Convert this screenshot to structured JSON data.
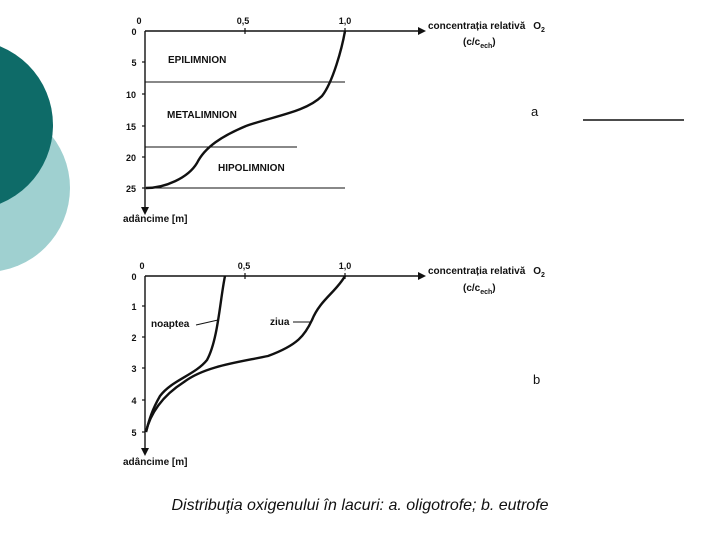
{
  "slide": {
    "caption": "Distribuţia oxigenului în lacuri: a. oligotrofe; b. eutrofe",
    "colors": {
      "teal_dark": "#0e6b68",
      "teal_light": "#9fd0d0",
      "ink": "#111111"
    }
  },
  "panel_a": {
    "letter": "a",
    "x_title_1": "concentrația relativă",
    "x_title_gas": "O",
    "x_title_gas_sub": "2",
    "x_unit_open": "(c/c",
    "x_unit_sub": "ech",
    "x_unit_close": ")",
    "y_title": "adâncime [m]",
    "x_ticks": [
      "0",
      "0,5",
      "1,0"
    ],
    "y_ticks": [
      "0",
      "5",
      "10",
      "15",
      "20",
      "25"
    ],
    "zones": [
      "EPILIMNION",
      "METALIMNION",
      "HIPOLIMNION"
    ]
  },
  "panel_b": {
    "letter": "b",
    "x_title_1": "concentrația relativă",
    "x_title_gas": "O",
    "x_title_gas_sub": "2",
    "x_unit_open": "(c/c",
    "x_unit_sub": "ech",
    "x_unit_close": ")",
    "y_title": "adâncime [m]",
    "x_ticks": [
      "0",
      "0,5",
      "1,0"
    ],
    "y_ticks": [
      "0",
      "1",
      "2",
      "3",
      "4",
      "5"
    ],
    "curve_labels": {
      "night": "noaptea",
      "day": "ziua"
    }
  }
}
